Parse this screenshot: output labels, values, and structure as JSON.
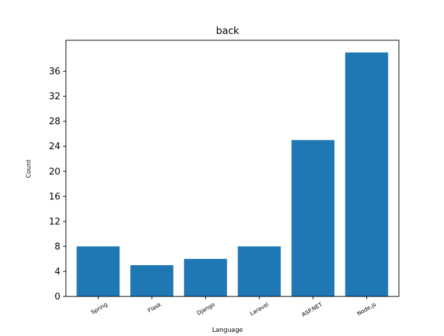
{
  "chart_data": {
    "type": "bar",
    "title": "back",
    "xlabel": "Language",
    "ylabel": "Count",
    "categories": [
      "Spring",
      "Flask",
      "Django",
      "Laravel",
      "ASP.NET",
      "Node.js"
    ],
    "values": [
      8,
      5,
      6,
      8,
      25,
      39
    ],
    "ylim": [
      0,
      40.95
    ],
    "yticks": [
      0,
      4,
      8,
      12,
      16,
      20,
      24,
      28,
      32,
      36
    ],
    "grid": false,
    "legend": "none",
    "bar_color": "#1f77b4"
  }
}
